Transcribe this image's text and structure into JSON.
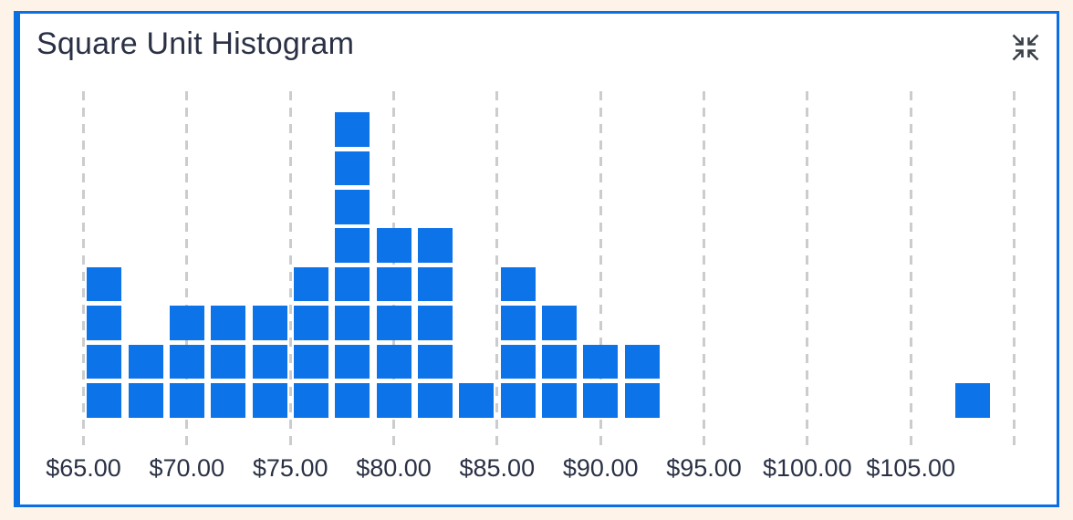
{
  "header": {
    "title": "Square Unit Histogram",
    "collapse_icon": "collapse-icon"
  },
  "colors": {
    "page_background": "#fdf3e8",
    "card_background": "#ffffff",
    "card_border": "#0a6fe2",
    "square_fill": "#0d73e8",
    "gridline": "#cbcccd",
    "text": "#2b3145",
    "icon": "#3b4048"
  },
  "chart_data": {
    "type": "histogram",
    "title": "Square Unit Histogram",
    "orientation": "vertical",
    "mark": "unit-square",
    "unit_per_square": 1,
    "bin_width": 2,
    "bin_centers": [
      66,
      68,
      70,
      72,
      74,
      76,
      78,
      80,
      82,
      84,
      86,
      88,
      90,
      92,
      108
    ],
    "counts": [
      4,
      2,
      3,
      3,
      3,
      4,
      8,
      5,
      5,
      1,
      4,
      3,
      2,
      2,
      1
    ],
    "total_squares": 50,
    "x_tick_values": [
      65,
      70,
      75,
      80,
      85,
      90,
      95,
      100,
      105
    ],
    "x_tick_labels": [
      "$65.00",
      "$70.00",
      "$75.00",
      "$80.00",
      "$85.00",
      "$90.00",
      "$95.00",
      "$100.00",
      "$105.00"
    ],
    "gridline_values": [
      65,
      70,
      75,
      80,
      85,
      90,
      95,
      100,
      105,
      110
    ],
    "x_range": [
      62.8,
      112.9
    ],
    "y_range": [
      0,
      9.2
    ],
    "grid": "vertical-dashed",
    "y_axis_labels": "none",
    "legend": "none"
  }
}
